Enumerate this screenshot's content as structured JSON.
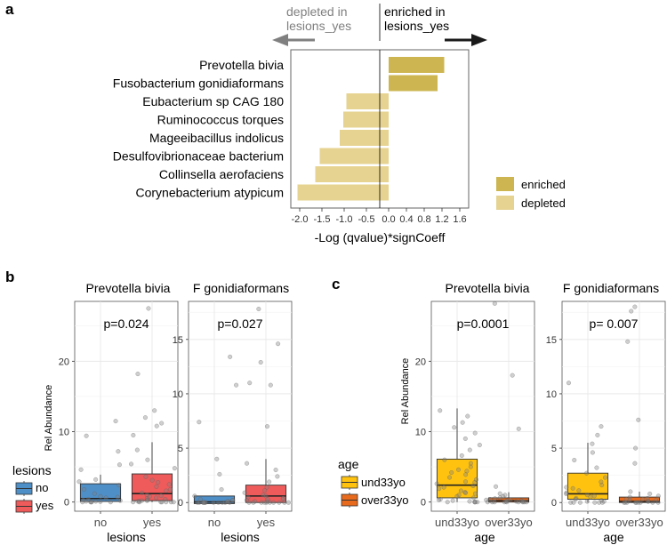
{
  "panel_labels": {
    "a": "a",
    "b": "b",
    "c": "c"
  },
  "colors": {
    "enriched": "#cdb652",
    "depleted": "#e6d391",
    "lesions_no": "#4e8fc7",
    "lesions_yes": "#ef5b5b",
    "und33yo": "#ffc30f",
    "over33yo": "#e86a1d",
    "arrow_dark": "#1a1a1a",
    "arrow_gray": "#808080"
  },
  "chart_data": [
    {
      "id": "a",
      "type": "bar",
      "orientation": "horizontal",
      "categories": [
        "Prevotella bivia",
        "Fusobacterium gonidiaformans",
        "Eubacterium sp CAG 180",
        "Ruminococcus torques",
        "Mageeibacillus indolicus",
        "Desulfovibrionaceae bacterium",
        "Collinsella aerofaciens",
        "Corynebacterium atypicum"
      ],
      "values": [
        1.25,
        1.1,
        -0.95,
        -1.02,
        -1.1,
        -1.55,
        -1.65,
        -2.05
      ],
      "groups": [
        "enriched",
        "enriched",
        "depleted",
        "depleted",
        "depleted",
        "depleted",
        "depleted",
        "depleted"
      ],
      "xlim": [
        -2.2,
        1.8
      ],
      "xticks": [
        -2.0,
        -1.5,
        -1.0,
        -0.5,
        0.0,
        0.4,
        0.8,
        1.2,
        1.6
      ],
      "xtick_labels": [
        "-2.0",
        "-1.5",
        "-1.0",
        "-0.5",
        "0.0",
        "0.4",
        "0.8",
        "1.2",
        "1.6"
      ],
      "xlabel": "-Log (qvalue)*signCoeff",
      "annotation_left": [
        "depleted in",
        "lesions_yes"
      ],
      "annotation_right": [
        "enriched in",
        "lesions_yes"
      ],
      "legend": [
        {
          "name": "enriched"
        },
        {
          "name": "depleted"
        }
      ]
    },
    {
      "id": "b",
      "type": "boxplot",
      "ylabel": "Rel Abundance",
      "xlabel": "lesions",
      "legend_title": "lesions",
      "legend": [
        {
          "name": "no",
          "color_key": "lesions_no"
        },
        {
          "name": "yes",
          "color_key": "lesions_yes"
        }
      ],
      "facets": [
        {
          "title": "Prevotella bivia",
          "pvalue": "p=0.024",
          "ylim": [
            -1.3,
            28.5
          ],
          "yticks": [
            0,
            10,
            20
          ],
          "ytick_labels": [
            "0",
            "10",
            "20"
          ],
          "groups": [
            {
              "name": "no",
              "color_key": "lesions_no",
              "q1": 0.1,
              "median": 0.5,
              "q3": 2.6,
              "whisker_low": 0,
              "whisker_high": 3.9,
              "points": [
                7.2,
                5.3,
                4.6,
                3.2,
                2.4,
                1.8,
                1.2,
                0.8,
                0.6,
                0.4,
                0.3,
                0.2,
                0.1,
                0.1,
                0.05,
                0,
                0,
                0,
                0,
                0,
                2.9,
                0.7,
                9.4,
                11.5
              ]
            },
            {
              "name": "yes",
              "color_key": "lesions_yes",
              "q1": 0.2,
              "median": 1.2,
              "q3": 4.0,
              "whisker_low": 0,
              "whisker_high": 8.5,
              "points": [
                27.5,
                18.2,
                13.0,
                12.0,
                11.2,
                10.8,
                9.5,
                7.4,
                6.0,
                5.4,
                4.8,
                3.6,
                2.8,
                2.2,
                1.8,
                1.3,
                1.0,
                0.8,
                0.5,
                0.4,
                0.3,
                0.2,
                0.1,
                0.1,
                0,
                0,
                0,
                0,
                0,
                0,
                2.5,
                1.6,
                0.9,
                0.6,
                3.1,
                0,
                0.2
              ]
            }
          ]
        },
        {
          "title": "F gonidiaformans",
          "pvalue": "p=0.027",
          "ylim": [
            -0.8,
            18.5
          ],
          "yticks": [
            0,
            5,
            10,
            15
          ],
          "ytick_labels": [
            "0",
            "5",
            "10",
            "15"
          ],
          "groups": [
            {
              "name": "no",
              "color_key": "lesions_no",
              "q1": -0.1,
              "median": 0.05,
              "q3": 0.6,
              "whisker_low": -0.1,
              "whisker_high": 0.6,
              "points": [
                13.4,
                10.8,
                7.4,
                4.0,
                2.6,
                1.2,
                0.6,
                0.3,
                0.2,
                0.1,
                0,
                0,
                0,
                0,
                0,
                0,
                0,
                0,
                0,
                0,
                0,
                0,
                0.1,
                0.2
              ]
            },
            {
              "name": "yes",
              "color_key": "lesions_yes",
              "q1": 0.0,
              "median": 0.6,
              "q3": 1.6,
              "whisker_low": 0,
              "whisker_high": 4.0,
              "points": [
                17.8,
                14.6,
                12.9,
                11.0,
                10.8,
                7.0,
                3.6,
                3.0,
                2.4,
                1.9,
                1.4,
                1.1,
                0.9,
                0.7,
                0.5,
                0.4,
                0.3,
                0.2,
                0.1,
                0.1,
                0,
                0,
                0,
                0,
                0,
                0,
                0,
                0,
                0,
                0,
                0.6,
                0.3
              ]
            }
          ]
        }
      ]
    },
    {
      "id": "c",
      "type": "boxplot",
      "ylabel": "Rel Abundance",
      "xlabel": "age",
      "legend_title": "age",
      "legend": [
        {
          "name": "und33yo",
          "color_key": "und33yo"
        },
        {
          "name": "over33yo",
          "color_key": "over33yo"
        }
      ],
      "facets": [
        {
          "title": "Prevotella bivia",
          "pvalue": "p=0.0001",
          "ylim": [
            -1.3,
            28.5
          ],
          "yticks": [
            0,
            10,
            20
          ],
          "ytick_labels": [
            "0",
            "10",
            "20"
          ],
          "groups": [
            {
              "name": "und33yo",
              "color_key": "und33yo",
              "q1": 0.6,
              "median": 2.4,
              "q3": 6.1,
              "whisker_low": 0,
              "whisker_high": 13.3,
              "points": [
                13.0,
                12.2,
                11.3,
                10.6,
                9.8,
                9.0,
                8.1,
                7.4,
                6.6,
                6.0,
                5.5,
                5.0,
                4.6,
                4.2,
                3.9,
                3.5,
                3.2,
                2.9,
                2.6,
                2.3,
                2.1,
                1.9,
                1.6,
                1.4,
                1.2,
                1.0,
                0.8,
                0.6,
                0.4,
                0.3,
                0.2,
                0.1,
                0,
                0,
                0,
                0,
                0,
                2.8,
                4.4,
                1.3
              ]
            },
            {
              "name": "over33yo",
              "color_key": "over33yo",
              "q1": 0.0,
              "median": 0.2,
              "q3": 0.6,
              "whisker_low": 0,
              "whisker_high": 1.4,
              "points": [
                28.2,
                18.0,
                10.4,
                2.2,
                1.2,
                1.0,
                0.8,
                0.6,
                0.5,
                0.4,
                0.3,
                0.2,
                0.2,
                0.1,
                0.1,
                0,
                0,
                0,
                0,
                0,
                0,
                0,
                0,
                0,
                0.3,
                0.1
              ]
            }
          ]
        },
        {
          "title": "F gonidiaformans",
          "pvalue": "p= 0.007",
          "ylim": [
            -0.8,
            18.5
          ],
          "yticks": [
            0,
            5,
            10,
            15
          ],
          "ytick_labels": [
            "0",
            "5",
            "10",
            "15"
          ],
          "groups": [
            {
              "name": "und33yo",
              "color_key": "und33yo",
              "q1": 0.3,
              "median": 0.8,
              "q3": 2.7,
              "whisker_low": 0,
              "whisker_high": 5.5,
              "points": [
                11.0,
                7.0,
                6.2,
                5.4,
                4.6,
                3.9,
                3.2,
                2.7,
                2.3,
                1.9,
                1.6,
                1.3,
                1.1,
                0.9,
                0.7,
                0.6,
                0.5,
                0.4,
                0.3,
                0.2,
                0.1,
                0.1,
                0,
                0,
                0,
                0,
                0,
                0,
                1.4,
                0.8
              ]
            },
            {
              "name": "over33yo",
              "color_key": "over33yo",
              "q1": 0.0,
              "median": 0.1,
              "q3": 0.5,
              "whisker_low": 0,
              "whisker_high": 1.0,
              "points": [
                18.0,
                17.6,
                14.8,
                7.6,
                5.0,
                3.6,
                1.0,
                0.8,
                0.6,
                0.5,
                0.4,
                0.3,
                0.2,
                0.1,
                0.1,
                0,
                0,
                0,
                0,
                0,
                0,
                0,
                0,
                0,
                0.2,
                0.3
              ]
            }
          ]
        }
      ]
    }
  ]
}
